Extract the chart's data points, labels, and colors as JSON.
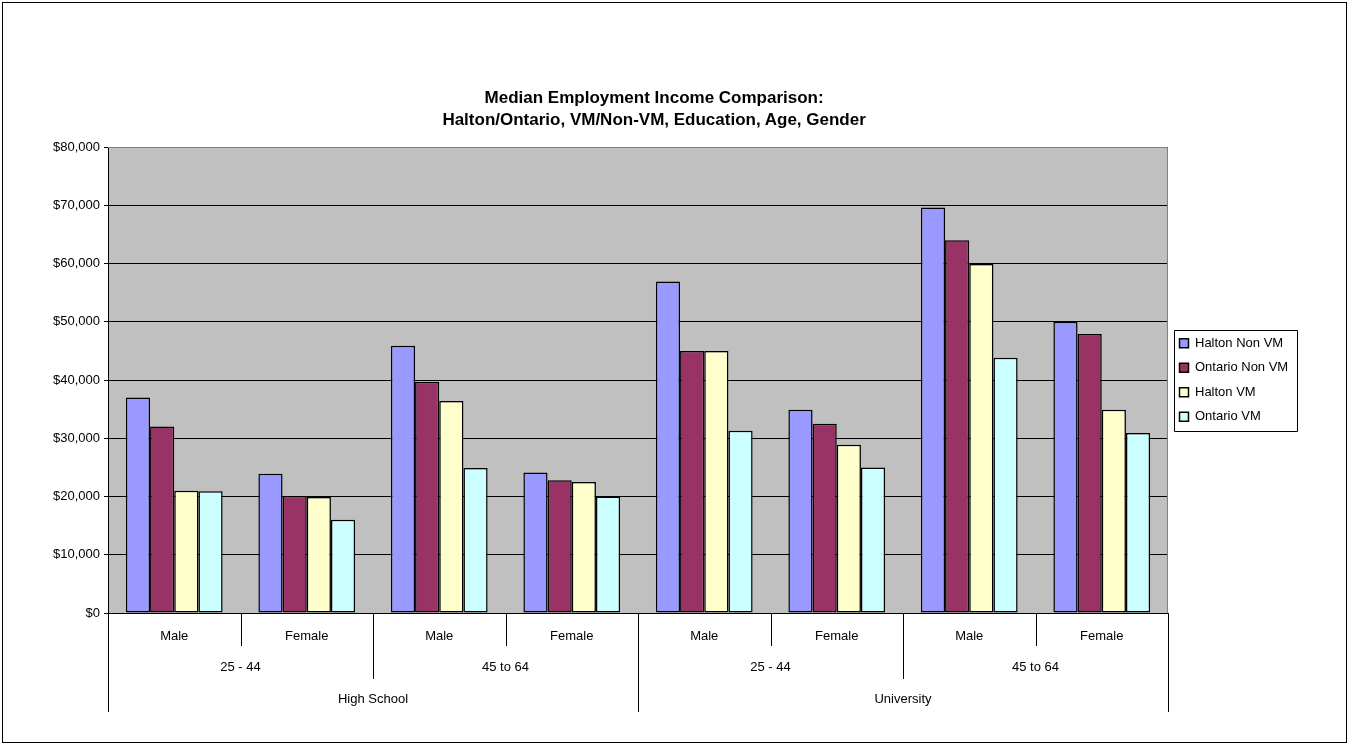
{
  "chart_data": {
    "type": "bar",
    "title": "Median Employment Income Comparison:\nHalton/Ontario, VM/Non-VM, Education, Age, Gender",
    "categories": [
      "Male",
      "Female",
      "Male",
      "Female",
      "Male",
      "Female",
      "Male",
      "Female"
    ],
    "annotations": [
      "25 - 44",
      "45 to 64",
      "25 - 44",
      "45 to 64",
      "High School",
      "University"
    ],
    "series": [
      {
        "name": "Halton Non VM",
        "color": "#9999ff",
        "values": [
          37000,
          23900,
          45900,
          24100,
          56900,
          34900,
          69600,
          50000
        ]
      },
      {
        "name": "Ontario Non VM",
        "color": "#993366",
        "values": [
          32000,
          20100,
          39700,
          22800,
          45000,
          32500,
          64000,
          47900
        ]
      },
      {
        "name": "Halton VM",
        "color": "#ffffcc",
        "values": [
          21000,
          19900,
          36400,
          22500,
          45000,
          28900,
          59900,
          34900
        ]
      },
      {
        "name": "Ontario VM",
        "color": "#ccffff",
        "values": [
          20900,
          16000,
          24900,
          20000,
          31300,
          25000,
          43800,
          30900
        ]
      }
    ],
    "ylim": [
      0,
      80000
    ],
    "yticks": [
      {
        "value": 0,
        "label": "$0"
      },
      {
        "value": 10000,
        "label": "$10,000"
      },
      {
        "value": 20000,
        "label": "$20,000"
      },
      {
        "value": 30000,
        "label": "$30,000"
      },
      {
        "value": 40000,
        "label": "$40,000"
      },
      {
        "value": 50000,
        "label": "$50,000"
      },
      {
        "value": 60000,
        "label": "$60,000"
      },
      {
        "value": 70000,
        "label": "$70,000"
      },
      {
        "value": 80000,
        "label": "$80,000"
      }
    ],
    "grid": "y",
    "legend": "right"
  }
}
